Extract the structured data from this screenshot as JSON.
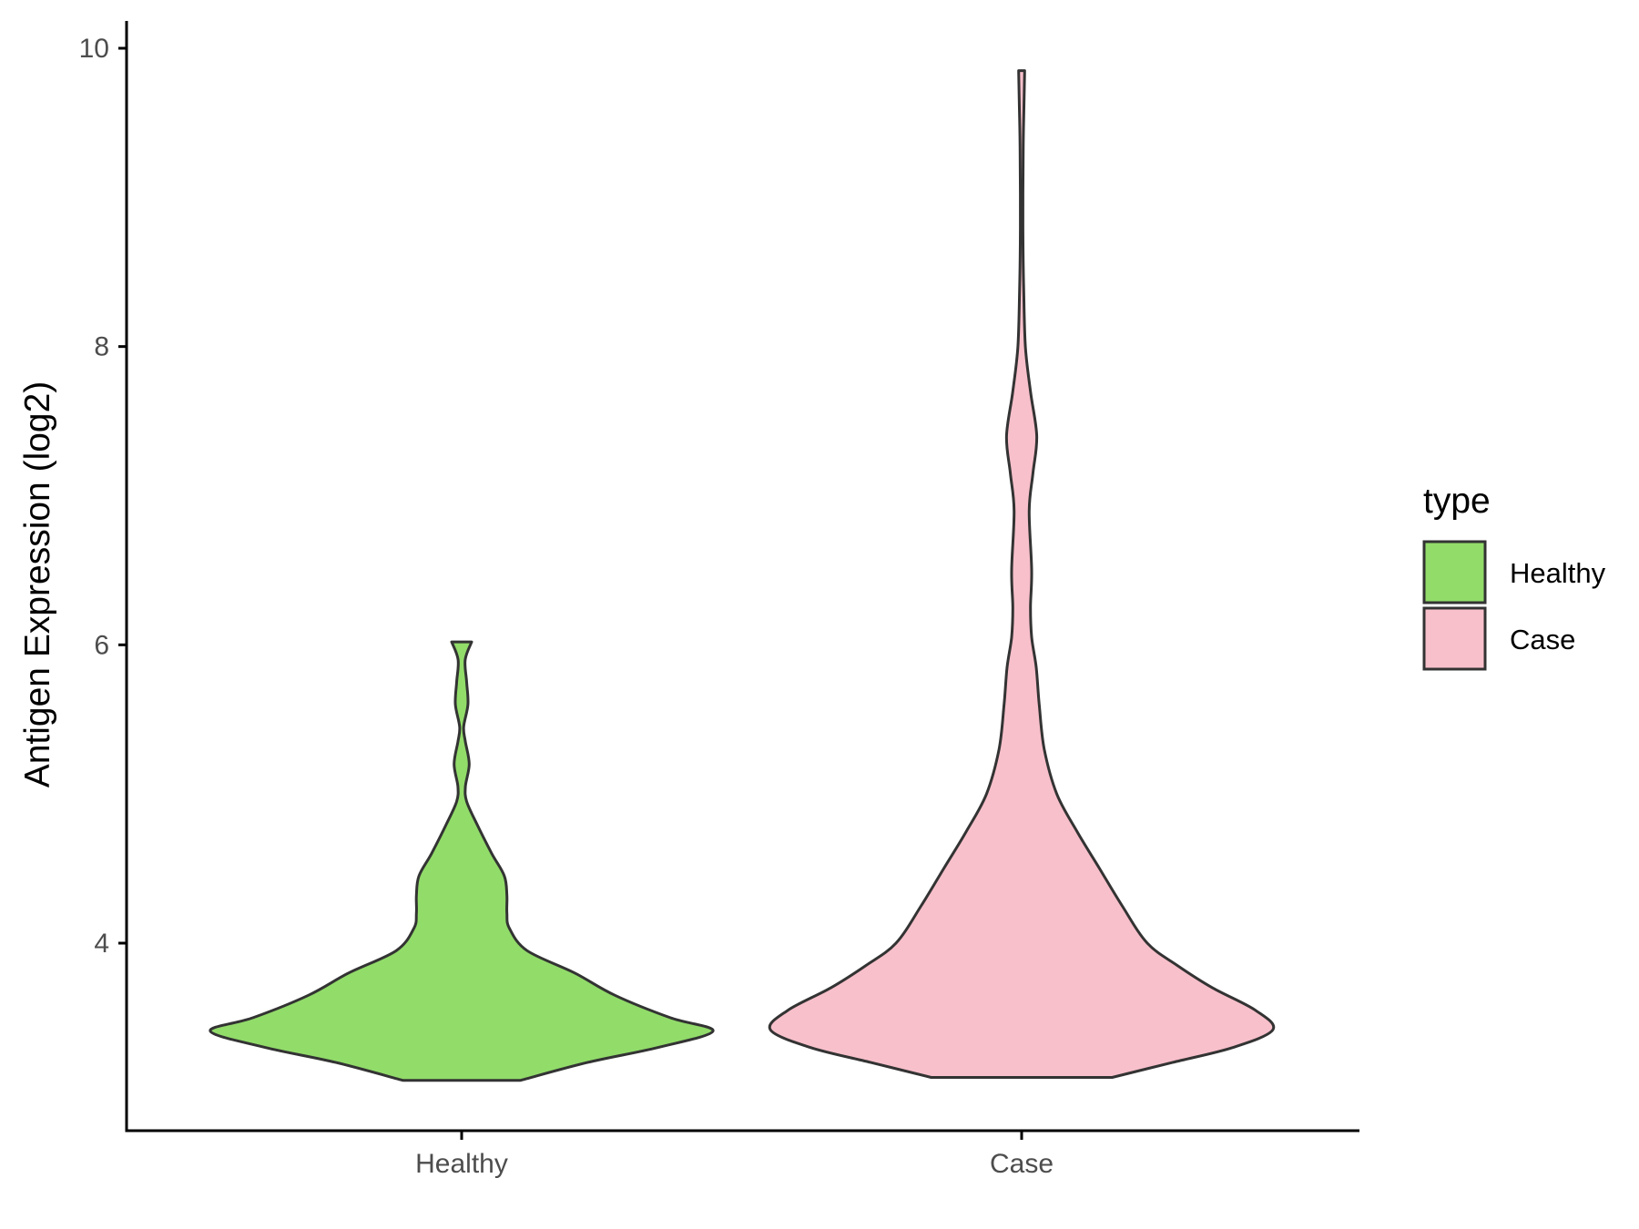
{
  "chart_data": {
    "type": "violin",
    "title": "",
    "xlabel": "",
    "ylabel": "Antigen Expression (log2)",
    "categories": [
      "Healthy",
      "Case"
    ],
    "ylim": [
      2.75,
      10.2
    ],
    "yticks": [
      4,
      6,
      8,
      10
    ],
    "grid": false,
    "legend": {
      "title": "type",
      "placement": "right",
      "entries": [
        "Healthy",
        "Case"
      ]
    },
    "colors": {
      "Healthy": "#92dc6a",
      "Case": "#f8c0cb",
      "outline": "#333333",
      "axis": "#000000"
    },
    "series": [
      {
        "name": "Healthy",
        "min": 3.08,
        "max": 6.02,
        "density": [
          [
            3.08,
            0.234
          ],
          [
            3.2,
            0.5
          ],
          [
            3.3,
            0.78
          ],
          [
            3.41,
            1.0
          ],
          [
            3.5,
            0.83
          ],
          [
            3.65,
            0.61
          ],
          [
            3.8,
            0.45
          ],
          [
            3.95,
            0.26
          ],
          [
            4.1,
            0.19
          ],
          [
            4.2,
            0.18
          ],
          [
            4.32,
            0.18
          ],
          [
            4.45,
            0.17
          ],
          [
            4.6,
            0.12
          ],
          [
            4.8,
            0.06
          ],
          [
            4.95,
            0.02
          ],
          [
            5.05,
            0.015
          ],
          [
            5.2,
            0.03
          ],
          [
            5.35,
            0.015
          ],
          [
            5.45,
            0.008
          ],
          [
            5.6,
            0.025
          ],
          [
            5.75,
            0.02
          ],
          [
            5.9,
            0.014
          ],
          [
            6.02,
            0.04
          ]
        ]
      },
      {
        "name": "Case",
        "min": 3.1,
        "max": 9.85,
        "density": [
          [
            3.1,
            0.36
          ],
          [
            3.2,
            0.6
          ],
          [
            3.3,
            0.84
          ],
          [
            3.42,
            1.0
          ],
          [
            3.55,
            0.93
          ],
          [
            3.7,
            0.76
          ],
          [
            3.85,
            0.62
          ],
          [
            4.0,
            0.5
          ],
          [
            4.25,
            0.4
          ],
          [
            4.5,
            0.31
          ],
          [
            4.75,
            0.22
          ],
          [
            5.0,
            0.14
          ],
          [
            5.3,
            0.09
          ],
          [
            5.6,
            0.07
          ],
          [
            5.85,
            0.058
          ],
          [
            6.05,
            0.04
          ],
          [
            6.25,
            0.035
          ],
          [
            6.5,
            0.04
          ],
          [
            6.9,
            0.03
          ],
          [
            7.15,
            0.045
          ],
          [
            7.4,
            0.06
          ],
          [
            7.7,
            0.035
          ],
          [
            8.0,
            0.015
          ],
          [
            8.4,
            0.008
          ],
          [
            8.8,
            0.005
          ],
          [
            9.3,
            0.006
          ],
          [
            9.6,
            0.009
          ],
          [
            9.85,
            0.012
          ]
        ]
      }
    ]
  }
}
